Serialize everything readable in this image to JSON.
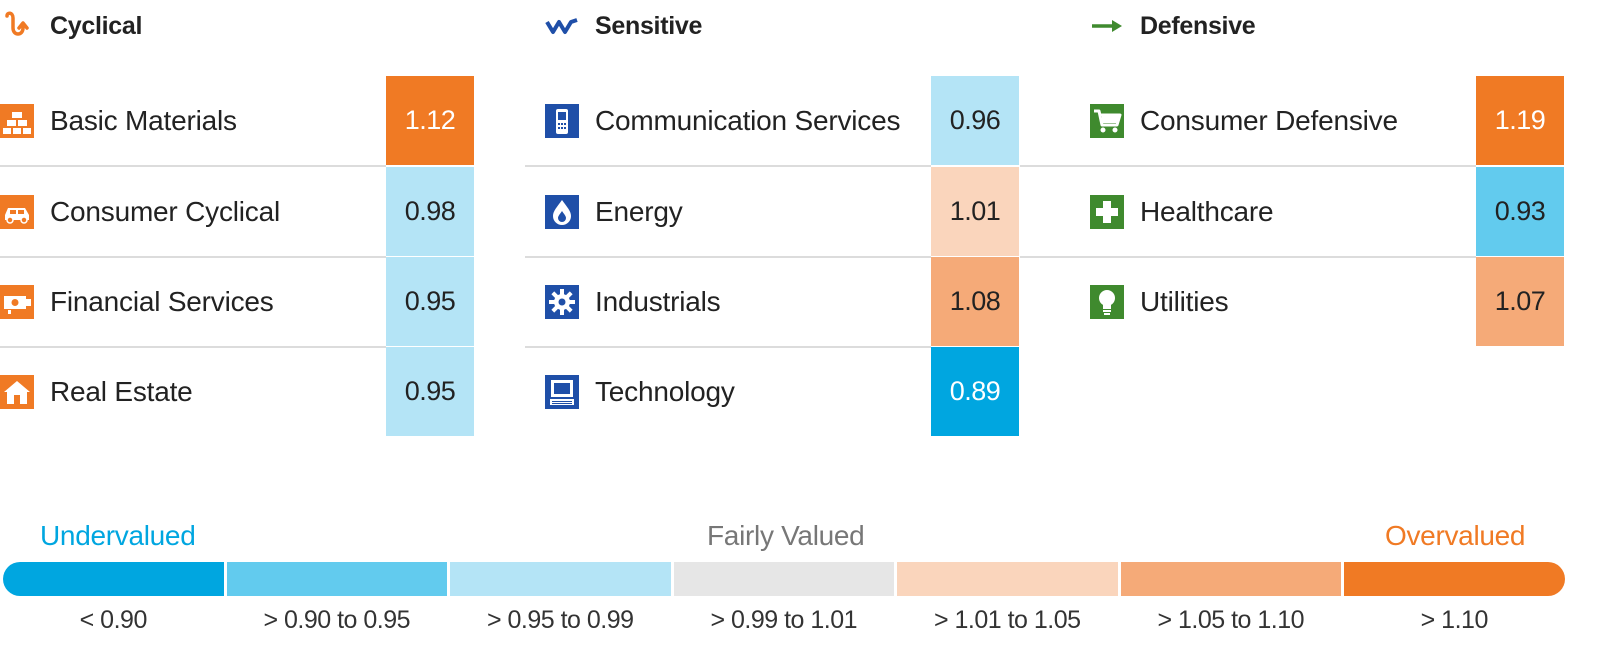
{
  "groups": [
    {
      "title": "Cyclical",
      "icon": "cyclical-wave-icon",
      "icon_color": "#F07A24",
      "sectors": [
        {
          "name": "Basic Materials",
          "icon": "gold-bars-icon",
          "value": "1.12"
        },
        {
          "name": "Consumer Cyclical",
          "icon": "car-icon",
          "value": "0.98"
        },
        {
          "name": "Financial Services",
          "icon": "money-icon",
          "value": "0.95"
        },
        {
          "name": "Real Estate",
          "icon": "house-icon",
          "value": "0.95"
        }
      ]
    },
    {
      "title": "Sensitive",
      "icon": "sensitive-zigzag-icon",
      "icon_color": "#1F4FA8",
      "sectors": [
        {
          "name": "Communication Services",
          "icon": "phone-icon",
          "value": "0.96"
        },
        {
          "name": "Energy",
          "icon": "flame-icon",
          "value": "1.01"
        },
        {
          "name": "Industrials",
          "icon": "gear-icon",
          "value": "1.08"
        },
        {
          "name": "Technology",
          "icon": "computer-icon",
          "value": "0.89"
        }
      ]
    },
    {
      "title": "Defensive",
      "icon": "defensive-arrow-icon",
      "icon_color": "#3F8A2E",
      "sectors": [
        {
          "name": "Consumer Defensive",
          "icon": "shopping-cart-icon",
          "value": "1.19"
        },
        {
          "name": "Healthcare",
          "icon": "medical-cross-icon",
          "value": "0.93"
        },
        {
          "name": "Utilities",
          "icon": "light-bulb-icon",
          "value": "1.07"
        }
      ]
    }
  ],
  "legend": {
    "undervalued": "Undervalued",
    "fairly_valued": "Fairly Valued",
    "overvalued": "Overvalued",
    "bands": [
      {
        "label": "< 0.90",
        "color": "#00A6E0"
      },
      {
        "label": "> 0.90 to 0.95",
        "color": "#62CBEE"
      },
      {
        "label": "> 0.95 to 0.99",
        "color": "#B4E4F6"
      },
      {
        "label": "> 0.99 to 1.01",
        "color": "#E6E6E6"
      },
      {
        "label": "> 1.01 to 1.05",
        "color": "#FAD5BC"
      },
      {
        "label": "> 1.05 to 1.10",
        "color": "#F5AA78"
      },
      {
        "label": "> 1.10",
        "color": "#F07A24"
      }
    ]
  },
  "chart_data": {
    "type": "table",
    "columns": [
      "Cyclical",
      "Sensitive",
      "Defensive"
    ],
    "rows": [
      {
        "group": "Cyclical",
        "sector": "Basic Materials",
        "value": 1.12
      },
      {
        "group": "Cyclical",
        "sector": "Consumer Cyclical",
        "value": 0.98
      },
      {
        "group": "Cyclical",
        "sector": "Financial Services",
        "value": 0.95
      },
      {
        "group": "Cyclical",
        "sector": "Real Estate",
        "value": 0.95
      },
      {
        "group": "Sensitive",
        "sector": "Communication Services",
        "value": 0.96
      },
      {
        "group": "Sensitive",
        "sector": "Energy",
        "value": 1.01
      },
      {
        "group": "Sensitive",
        "sector": "Industrials",
        "value": 1.08
      },
      {
        "group": "Sensitive",
        "sector": "Technology",
        "value": 0.89
      },
      {
        "group": "Defensive",
        "sector": "Consumer Defensive",
        "value": 1.19
      },
      {
        "group": "Defensive",
        "sector": "Healthcare",
        "value": 0.93
      },
      {
        "group": "Defensive",
        "sector": "Utilities",
        "value": 1.07
      }
    ],
    "color_scale": [
      {
        "label": "< 0.90",
        "max": 0.9,
        "color": "#00A6E0"
      },
      {
        "label": "> 0.90 to 0.95",
        "min": 0.9,
        "max": 0.95,
        "color": "#62CBEE"
      },
      {
        "label": "> 0.95 to 0.99",
        "min": 0.95,
        "max": 0.99,
        "color": "#B4E4F6"
      },
      {
        "label": "> 0.99 to 1.01",
        "min": 0.99,
        "max": 1.01,
        "color": "#E6E6E6"
      },
      {
        "label": "> 1.01 to 1.05",
        "min": 1.01,
        "max": 1.05,
        "color": "#FAD5BC"
      },
      {
        "label": "> 1.05 to 1.10",
        "min": 1.05,
        "max": 1.1,
        "color": "#F5AA78"
      },
      {
        "label": "> 1.10",
        "min": 1.1,
        "color": "#F07A24"
      }
    ]
  }
}
